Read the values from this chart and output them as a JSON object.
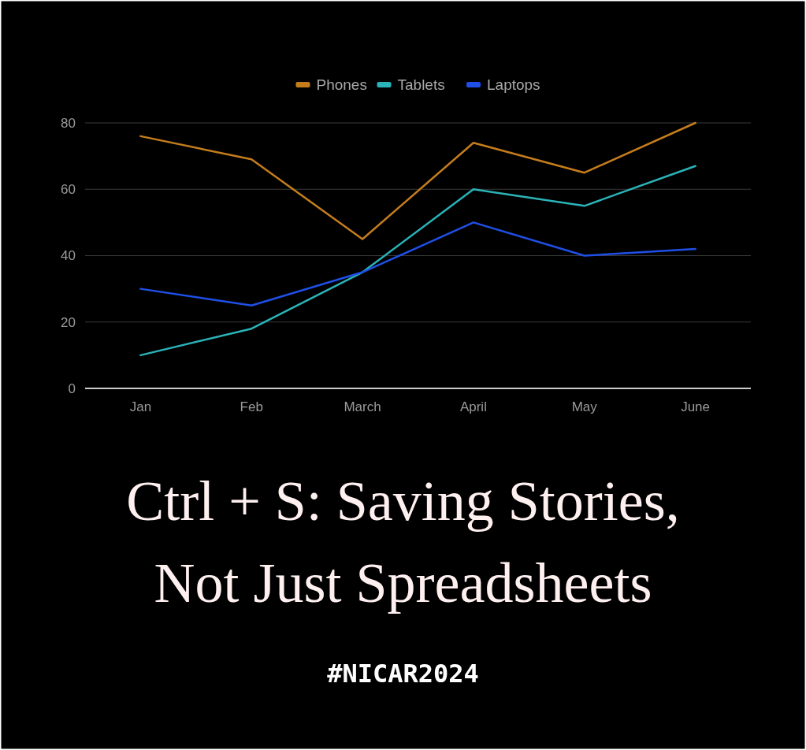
{
  "chart_data": {
    "type": "line",
    "title": "Ctrl + S: Saving Stories, Not Just Spreadsheets",
    "categories": [
      "Jan",
      "Feb",
      "March",
      "April",
      "May",
      "June"
    ],
    "series": [
      {
        "name": "Phones",
        "color": "#c57d1c",
        "values": [
          76,
          69,
          45,
          74,
          65,
          80
        ]
      },
      {
        "name": "Tablets",
        "color": "#2bb3b8",
        "values": [
          10,
          18,
          35,
          60,
          55,
          67
        ]
      },
      {
        "name": "Laptops",
        "color": "#1f4fe6",
        "values": [
          30,
          25,
          35,
          50,
          40,
          42
        ]
      }
    ],
    "ylim": [
      0,
      80
    ],
    "yticks": [
      0,
      20,
      40,
      60,
      80
    ],
    "grid": "y",
    "legend": "top",
    "marker": "none",
    "line_style": "solid",
    "annotations": [
      "#NICAR2024"
    ]
  }
}
